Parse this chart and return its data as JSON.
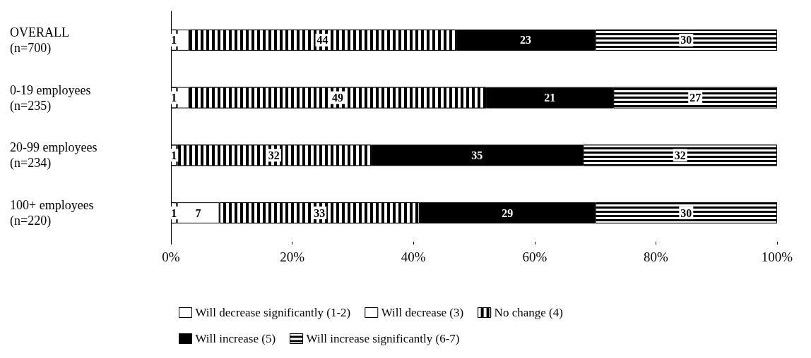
{
  "chart_data": {
    "type": "bar",
    "orientation": "horizontal",
    "stacked": true,
    "data_labels": true,
    "grid": false,
    "legend": "bottom",
    "categories": [
      "OVERALL\n(n=700)",
      "0-19 employees\n(n=235)",
      "20-99 employees\n(n=234)",
      "100+ employees\n(n=220)"
    ],
    "xlim": [
      0,
      100
    ],
    "xticks": [
      {
        "value": 0,
        "label": "0%"
      },
      {
        "value": 20,
        "label": "20%"
      },
      {
        "value": 40,
        "label": "40%"
      },
      {
        "value": 60,
        "label": "60%"
      },
      {
        "value": 80,
        "label": "80%"
      },
      {
        "value": 100,
        "label": "100%"
      }
    ],
    "series": [
      {
        "name": "Will decrease significantly (1-2)",
        "color": "#ffffff",
        "values": [
          1,
          1,
          1,
          1
        ],
        "value_labels": [
          "1",
          "1",
          "1",
          "1"
        ]
      },
      {
        "name": "Will decrease (3)",
        "color": "#ffffff",
        "values": [
          2,
          2,
          null,
          7
        ],
        "value_labels": [
          null,
          null,
          null,
          "7"
        ]
      },
      {
        "name": "No change (4)",
        "color": "#000000",
        "values": [
          44,
          49,
          32,
          33
        ],
        "value_labels": [
          "44",
          "49",
          "32",
          "33"
        ]
      },
      {
        "name": "Will increase (5)",
        "color": "#000000",
        "values": [
          23,
          21,
          35,
          29
        ],
        "value_labels": [
          "23",
          "21",
          "35",
          "29"
        ]
      },
      {
        "name": "Will increase significantly (6-7)",
        "color": "#000000",
        "values": [
          30,
          27,
          32,
          30
        ],
        "value_labels": [
          "30",
          "27",
          "32",
          "30"
        ]
      }
    ]
  }
}
